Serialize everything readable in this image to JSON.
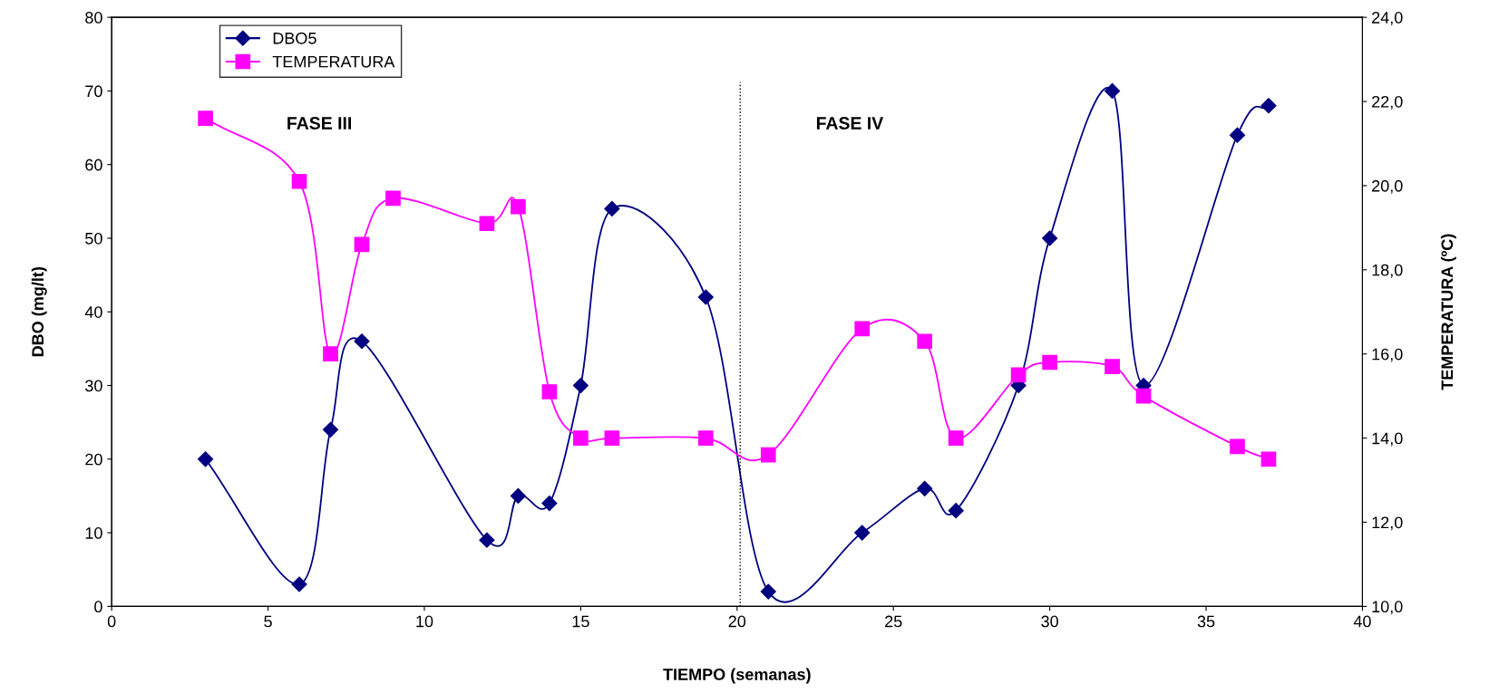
{
  "chart_data": {
    "type": "line",
    "xlabel": "TIEMPO (semanas)",
    "ylabel": "DBO (mg/lt)",
    "y2label": "TEMPERATURA (ºC)",
    "xlim": [
      0,
      40
    ],
    "xticks": [
      0,
      5,
      10,
      15,
      20,
      25,
      30,
      35,
      40
    ],
    "ylim": [
      0,
      80
    ],
    "yticks": [
      0,
      10,
      20,
      30,
      40,
      50,
      60,
      70,
      80
    ],
    "y2lim": [
      10,
      24
    ],
    "y2ticks": [
      {
        "value": 10,
        "label": "10,0"
      },
      {
        "value": 12,
        "label": "12,0"
      },
      {
        "value": 14,
        "label": "14,0"
      },
      {
        "value": 16,
        "label": "16,0"
      },
      {
        "value": 18,
        "label": "18,0"
      },
      {
        "value": 20,
        "label": "20,0"
      },
      {
        "value": 22,
        "label": "22,0"
      },
      {
        "value": 24,
        "label": "24,0"
      }
    ],
    "grid": false,
    "legend": "top left",
    "ref_lines": [
      {
        "axis": "x",
        "value": 20.1,
        "color": "#000000",
        "line_style": "dotted"
      }
    ],
    "annotations": [
      "FASE III",
      "FASE IV"
    ],
    "series": [
      {
        "name": "DBO5",
        "color": "#000080",
        "marker": "diamond",
        "x": [
          3,
          6,
          7,
          8,
          12,
          13,
          14,
          15,
          16,
          19,
          21,
          24,
          26,
          27,
          29,
          30,
          32,
          33,
          36,
          37
        ],
        "values": [
          20,
          3,
          24,
          36,
          9,
          15,
          14,
          30,
          54,
          42,
          2,
          10,
          16,
          13,
          30,
          50,
          70,
          30,
          64,
          68
        ]
      },
      {
        "name": "TEMPERATURA",
        "color": "#ff00ff",
        "marker": "square",
        "axis": "y2",
        "x": [
          3,
          6,
          7,
          8,
          9,
          12,
          13,
          14,
          15,
          16,
          19,
          21,
          24,
          26,
          27,
          29,
          30,
          32,
          33,
          36,
          37
        ],
        "values": [
          21.6,
          20.1,
          16.0,
          18.6,
          19.7,
          19.1,
          19.5,
          15.1,
          14.0,
          14.0,
          14.0,
          13.6,
          16.6,
          16.3,
          14.0,
          15.5,
          15.8,
          15.7,
          15.0,
          13.8,
          13.5
        ]
      }
    ]
  }
}
